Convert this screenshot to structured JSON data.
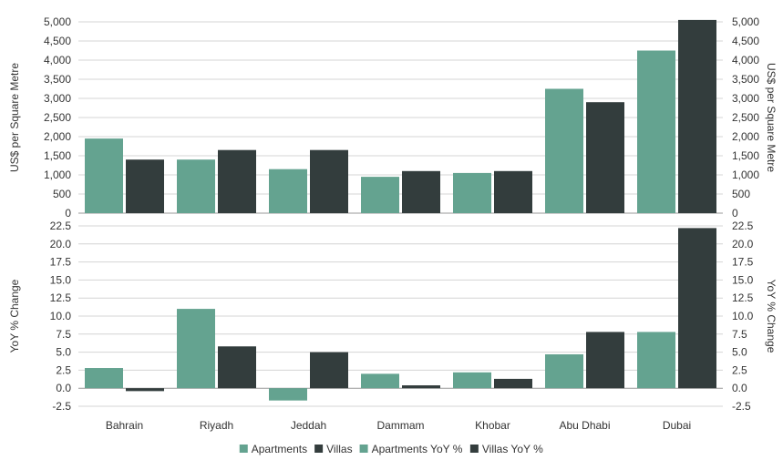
{
  "chart_data": [
    {
      "type": "bar",
      "categories": [
        "Bahrain",
        "Riyadh",
        "Jeddah",
        "Dammam",
        "Khobar",
        "Abu Dhabi",
        "Dubai"
      ],
      "series": [
        {
          "name": "Apartments",
          "values": [
            1950,
            1400,
            1150,
            950,
            1050,
            3250,
            4250
          ]
        },
        {
          "name": "Villas",
          "values": [
            1400,
            1650,
            1650,
            1100,
            1100,
            2900,
            5050
          ]
        }
      ],
      "ylabel_left": "US$ per Square Metre",
      "ylabel_right": "US$ per Square Metre",
      "ylim": [
        0,
        5000
      ],
      "yticks": [
        "0",
        "500",
        "1,000",
        "1,500",
        "2,000",
        "2,500",
        "3,000",
        "3,500",
        "4,000",
        "4,500",
        "5,000"
      ],
      "grid": true
    },
    {
      "type": "bar",
      "categories": [
        "Bahrain",
        "Riyadh",
        "Jeddah",
        "Dammam",
        "Khobar",
        "Abu Dhabi",
        "Dubai"
      ],
      "series": [
        {
          "name": "Apartments YoY %",
          "values": [
            2.8,
            11.0,
            -1.7,
            2.0,
            2.2,
            4.7,
            7.8
          ]
        },
        {
          "name": "Villas YoY %",
          "values": [
            -0.4,
            5.8,
            5.0,
            0.4,
            1.3,
            7.8,
            22.2
          ]
        }
      ],
      "ylabel_left": "YoY % Change",
      "ylabel_right": "YoY % Change",
      "ylim": [
        -2.5,
        22.5
      ],
      "yticks": [
        "-2.5",
        "0.0",
        "2.5",
        "5.0",
        "7.5",
        "10.0",
        "12.5",
        "15.0",
        "17.5",
        "20.0",
        "22.5"
      ],
      "grid": true
    }
  ],
  "colors": {
    "apartments": "#64a390",
    "villas": "#333d3d"
  },
  "legend": {
    "placement": "bottom-center",
    "items": [
      {
        "label": "Apartments",
        "color_key": "apartments"
      },
      {
        "label": "Villas",
        "color_key": "villas"
      },
      {
        "label": "Apartments YoY %",
        "color_key": "apartments"
      },
      {
        "label": "Villas YoY %",
        "color_key": "villas"
      }
    ]
  }
}
